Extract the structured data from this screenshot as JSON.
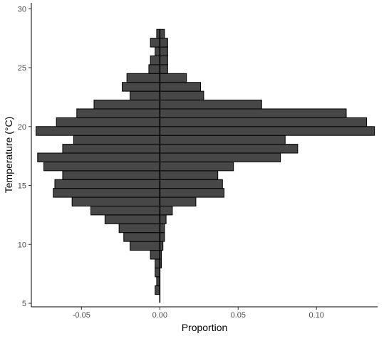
{
  "chart_data": {
    "type": "bar",
    "orientation": "horizontal",
    "title": "",
    "xlabel": "Proportion",
    "ylabel": "Temperature (°C)",
    "xlim": [
      -0.082,
      0.139
    ],
    "ylim": [
      4.7,
      30.5
    ],
    "xticks": [
      -0.05,
      0.0,
      0.05,
      0.1
    ],
    "xtick_labels": [
      "-0.05",
      "0.00",
      "0.05",
      "0.10"
    ],
    "yticks": [
      5,
      10,
      15,
      20,
      25,
      30
    ],
    "ytick_labels": [
      "5",
      "10",
      "15",
      "20",
      "25",
      "30"
    ],
    "bar_height": 0.75,
    "bar_fill": "#474747",
    "bar_stroke": "#000000",
    "grid": false,
    "series": [
      {
        "name": "left",
        "bars": [
          {
            "y": 6.125,
            "value": -0.003
          },
          {
            "y": 6.875,
            "value": -0.002
          },
          {
            "y": 7.625,
            "value": -0.003
          },
          {
            "y": 8.375,
            "value": -0.003
          },
          {
            "y": 9.125,
            "value": -0.006
          },
          {
            "y": 9.875,
            "value": -0.019
          },
          {
            "y": 10.625,
            "value": -0.023
          },
          {
            "y": 11.375,
            "value": -0.026
          },
          {
            "y": 12.125,
            "value": -0.035
          },
          {
            "y": 12.875,
            "value": -0.044
          },
          {
            "y": 13.625,
            "value": -0.056
          },
          {
            "y": 14.375,
            "value": -0.068
          },
          {
            "y": 15.125,
            "value": -0.067
          },
          {
            "y": 15.875,
            "value": -0.062
          },
          {
            "y": 16.625,
            "value": -0.074
          },
          {
            "y": 17.375,
            "value": -0.078
          },
          {
            "y": 18.125,
            "value": -0.062
          },
          {
            "y": 18.875,
            "value": -0.055
          },
          {
            "y": 19.625,
            "value": -0.079
          },
          {
            "y": 20.375,
            "value": -0.066
          },
          {
            "y": 21.125,
            "value": -0.053
          },
          {
            "y": 21.875,
            "value": -0.042
          },
          {
            "y": 22.625,
            "value": -0.019
          },
          {
            "y": 23.375,
            "value": -0.024
          },
          {
            "y": 24.125,
            "value": -0.021
          },
          {
            "y": 24.875,
            "value": -0.007
          },
          {
            "y": 25.625,
            "value": -0.006
          },
          {
            "y": 26.375,
            "value": -0.003
          },
          {
            "y": 27.125,
            "value": -0.006
          },
          {
            "y": 27.875,
            "value": -0.002
          }
        ]
      },
      {
        "name": "right",
        "bars": [
          {
            "y": 6.125,
            "value": 0.0
          },
          {
            "y": 6.875,
            "value": 0.0
          },
          {
            "y": 7.625,
            "value": 0.0
          },
          {
            "y": 8.375,
            "value": 0.001
          },
          {
            "y": 9.125,
            "value": 0.001
          },
          {
            "y": 9.875,
            "value": 0.002
          },
          {
            "y": 10.625,
            "value": 0.003
          },
          {
            "y": 11.375,
            "value": 0.003
          },
          {
            "y": 12.125,
            "value": 0.004
          },
          {
            "y": 12.875,
            "value": 0.008
          },
          {
            "y": 13.625,
            "value": 0.023
          },
          {
            "y": 14.375,
            "value": 0.041
          },
          {
            "y": 15.125,
            "value": 0.04
          },
          {
            "y": 15.875,
            "value": 0.037
          },
          {
            "y": 16.625,
            "value": 0.047
          },
          {
            "y": 17.375,
            "value": 0.077
          },
          {
            "y": 18.125,
            "value": 0.088
          },
          {
            "y": 18.875,
            "value": 0.08
          },
          {
            "y": 19.625,
            "value": 0.137
          },
          {
            "y": 20.375,
            "value": 0.132
          },
          {
            "y": 21.125,
            "value": 0.119
          },
          {
            "y": 21.875,
            "value": 0.065
          },
          {
            "y": 22.625,
            "value": 0.028
          },
          {
            "y": 23.375,
            "value": 0.026
          },
          {
            "y": 24.125,
            "value": 0.017
          },
          {
            "y": 24.875,
            "value": 0.005
          },
          {
            "y": 25.625,
            "value": 0.005
          },
          {
            "y": 26.375,
            "value": 0.005
          },
          {
            "y": 27.125,
            "value": 0.005
          },
          {
            "y": 27.875,
            "value": 0.003
          }
        ]
      }
    ]
  }
}
